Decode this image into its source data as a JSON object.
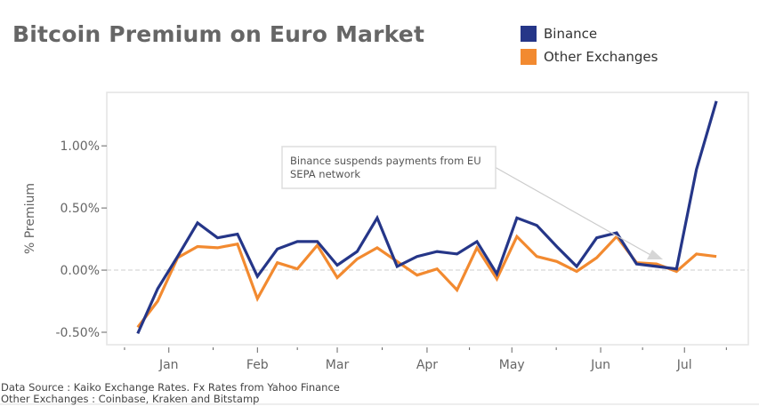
{
  "chart_data": {
    "type": "line",
    "title": "Bitcoin Premium on Euro Market",
    "xlabel": "",
    "ylabel": "% Premium",
    "ylim": [
      -0.6,
      1.43
    ],
    "yticks": [
      {
        "value": -0.5,
        "label": "-0.50%"
      },
      {
        "value": 0,
        "label": "0.00%"
      },
      {
        "value": 0.5,
        "label": "0.50%"
      },
      {
        "value": 1.0,
        "label": "1.00%"
      }
    ],
    "xticks": [
      {
        "pos": 1.56,
        "label": "Jan"
      },
      {
        "pos": 6.0,
        "label": "Feb"
      },
      {
        "pos": 10.0,
        "label": "Mar"
      },
      {
        "pos": 14.5,
        "label": "Apr"
      },
      {
        "pos": 18.75,
        "label": "May"
      },
      {
        "pos": 23.2,
        "label": "Jun"
      },
      {
        "pos": 27.4,
        "label": "Jul"
      }
    ],
    "xlim": [
      -1.55,
      30.6
    ],
    "grid": false,
    "zero_line": true,
    "legend_position": "top-right",
    "series": [
      {
        "name": "Binance",
        "color": "#253688",
        "values": [
          -0.51,
          -0.15,
          0.11,
          0.38,
          0.26,
          0.29,
          -0.05,
          0.17,
          0.23,
          0.23,
          0.04,
          0.15,
          0.42,
          0.03,
          0.11,
          0.15,
          0.13,
          0.23,
          -0.03,
          0.42,
          0.36,
          0.19,
          0.03,
          0.26,
          0.3,
          0.05,
          0.03,
          0.01,
          0.81,
          1.36
        ]
      },
      {
        "name": "Other Exchanges",
        "color": "#F28A30",
        "values": [
          -0.46,
          -0.25,
          0.1,
          0.19,
          0.18,
          0.21,
          -0.23,
          0.06,
          0.01,
          0.2,
          -0.06,
          0.09,
          0.18,
          0.07,
          -0.04,
          0.01,
          -0.16,
          0.18,
          -0.07,
          0.27,
          0.11,
          0.07,
          -0.01,
          0.1,
          0.27,
          0.06,
          0.05,
          -0.01,
          0.13,
          0.11
        ]
      }
    ],
    "annotation": {
      "lines": [
        "Binance suspends payments from EU",
        "SEPA network"
      ],
      "points_to_index": 26.3
    }
  },
  "footnotes": [
    "Data Source : Kaiko Exchange Rates. Fx Rates from Yahoo Finance",
    "Other Exchanges : Coinbase, Kraken and Bitstamp"
  ]
}
